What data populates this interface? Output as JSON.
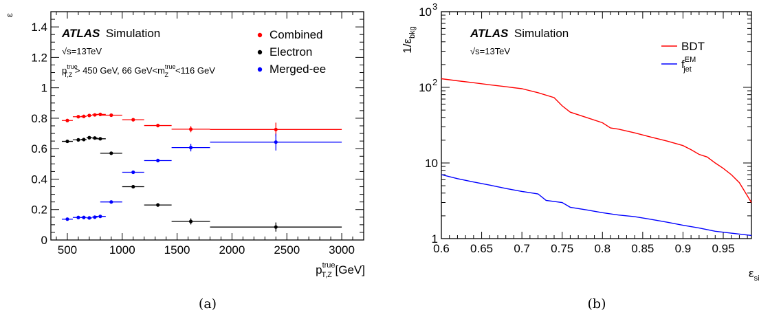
{
  "chart_data": [
    {
      "type": "scatter",
      "panel_label": "(a)",
      "header": {
        "experiment": "ATLAS",
        "label": "Simulation",
        "energy": "√s=13TeV"
      },
      "selection": {
        "p1": "p",
        "sup1": "true",
        "sub1": "T,Z",
        "p2": " > 450 GeV, 66 GeV<m",
        "sup2": "true",
        "sub2": "Z",
        "p3": "<116 GeV"
      },
      "xlabel": {
        "main": "p",
        "sup": "true",
        "sub": "T,Z",
        "unit": " [GeV]"
      },
      "ylabel": "ε",
      "xlim": [
        350,
        3200
      ],
      "ylim": [
        0,
        1.5
      ],
      "xticks": [
        500,
        1000,
        1500,
        2000,
        2500,
        3000
      ],
      "yticks": [
        0,
        0.2,
        0.4,
        0.6,
        0.8,
        1,
        1.2,
        1.4
      ],
      "legend_position": "top-right",
      "series": [
        {
          "name": "Combined",
          "color": "#ff0000",
          "points": [
            {
              "x": 500,
              "xerr": 50,
              "y": 0.785,
              "yerr": 0.006
            },
            {
              "x": 600,
              "xerr": 50,
              "y": 0.81,
              "yerr": 0.006
            },
            {
              "x": 650,
              "xerr": 25,
              "y": 0.812,
              "yerr": 0.006
            },
            {
              "x": 700,
              "xerr": 25,
              "y": 0.818,
              "yerr": 0.006
            },
            {
              "x": 750,
              "xerr": 25,
              "y": 0.822,
              "yerr": 0.006
            },
            {
              "x": 800,
              "xerr": 50,
              "y": 0.825,
              "yerr": 0.006
            },
            {
              "x": 900,
              "xerr": 100,
              "y": 0.82,
              "yerr": 0.006
            },
            {
              "x": 1100,
              "xerr": 100,
              "y": 0.79,
              "yerr": 0.008
            },
            {
              "x": 1325,
              "xerr": 125,
              "y": 0.752,
              "yerr": 0.012
            },
            {
              "x": 1625,
              "xerr": 175,
              "y": 0.728,
              "yerr": 0.02
            },
            {
              "x": 2400,
              "xerr": 600,
              "y": 0.726,
              "yerr": 0.045
            }
          ]
        },
        {
          "name": "Electron",
          "color": "#000000",
          "points": [
            {
              "x": 500,
              "xerr": 50,
              "y": 0.648,
              "yerr": 0.006
            },
            {
              "x": 600,
              "xerr": 50,
              "y": 0.658,
              "yerr": 0.006
            },
            {
              "x": 650,
              "xerr": 25,
              "y": 0.66,
              "yerr": 0.006
            },
            {
              "x": 700,
              "xerr": 25,
              "y": 0.672,
              "yerr": 0.006
            },
            {
              "x": 750,
              "xerr": 25,
              "y": 0.67,
              "yerr": 0.006
            },
            {
              "x": 800,
              "xerr": 50,
              "y": 0.665,
              "yerr": 0.006
            },
            {
              "x": 900,
              "xerr": 100,
              "y": 0.57,
              "yerr": 0.006
            },
            {
              "x": 1100,
              "xerr": 100,
              "y": 0.35,
              "yerr": 0.008
            },
            {
              "x": 1325,
              "xerr": 125,
              "y": 0.23,
              "yerr": 0.012
            },
            {
              "x": 1625,
              "xerr": 175,
              "y": 0.122,
              "yerr": 0.02
            },
            {
              "x": 2400,
              "xerr": 600,
              "y": 0.085,
              "yerr": 0.03
            }
          ]
        },
        {
          "name": "Merged-ee",
          "color": "#0000ff",
          "points": [
            {
              "x": 500,
              "xerr": 50,
              "y": 0.137,
              "yerr": 0.006
            },
            {
              "x": 600,
              "xerr": 50,
              "y": 0.148,
              "yerr": 0.006
            },
            {
              "x": 650,
              "xerr": 25,
              "y": 0.148,
              "yerr": 0.006
            },
            {
              "x": 700,
              "xerr": 25,
              "y": 0.145,
              "yerr": 0.006
            },
            {
              "x": 750,
              "xerr": 25,
              "y": 0.15,
              "yerr": 0.006
            },
            {
              "x": 800,
              "xerr": 50,
              "y": 0.155,
              "yerr": 0.006
            },
            {
              "x": 900,
              "xerr": 100,
              "y": 0.25,
              "yerr": 0.006
            },
            {
              "x": 1100,
              "xerr": 100,
              "y": 0.445,
              "yerr": 0.008
            },
            {
              "x": 1325,
              "xerr": 125,
              "y": 0.522,
              "yerr": 0.012
            },
            {
              "x": 1625,
              "xerr": 175,
              "y": 0.607,
              "yerr": 0.025
            },
            {
              "x": 2400,
              "xerr": 600,
              "y": 0.643,
              "yerr": 0.055
            }
          ]
        }
      ]
    },
    {
      "type": "line",
      "panel_label": "(b)",
      "header": {
        "experiment": "ATLAS",
        "label": "Simulation",
        "energy": "√s=13TeV"
      },
      "xlabel": {
        "main": "ε",
        "sub": "sig"
      },
      "ylabel": {
        "main": "1/ε",
        "sub": "bkg"
      },
      "xlim": [
        0.6,
        0.985
      ],
      "ylim": [
        1,
        1000
      ],
      "yscale": "log",
      "xticks": [
        0.6,
        0.65,
        0.7,
        0.75,
        0.8,
        0.85,
        0.9,
        0.95
      ],
      "yticks": [
        {
          "value": 1,
          "base": "1",
          "sup": ""
        },
        {
          "value": 10,
          "base": "10",
          "sup": ""
        },
        {
          "value": 100,
          "base": "10",
          "sup": "2"
        },
        {
          "value": 1000,
          "base": "10",
          "sup": "3"
        }
      ],
      "legend_position": "top-right",
      "series": [
        {
          "name": "BDT",
          "color": "#ff0000",
          "x": [
            0.6,
            0.62,
            0.64,
            0.66,
            0.68,
            0.7,
            0.72,
            0.74,
            0.75,
            0.76,
            0.78,
            0.8,
            0.81,
            0.82,
            0.84,
            0.86,
            0.88,
            0.9,
            0.91,
            0.92,
            0.93,
            0.94,
            0.95,
            0.96,
            0.97,
            0.985
          ],
          "y": [
            130,
            122,
            115,
            108,
            102,
            96,
            85,
            73,
            57,
            47,
            40,
            34,
            29,
            28,
            25,
            22,
            19.5,
            17,
            15,
            13,
            12,
            10,
            8.5,
            7,
            5.5,
            3
          ]
        },
        {
          "name": "f",
          "name_sup": "EM",
          "name_sub": "jet",
          "color": "#0000ff",
          "x": [
            0.6,
            0.62,
            0.64,
            0.66,
            0.68,
            0.7,
            0.72,
            0.73,
            0.75,
            0.76,
            0.78,
            0.8,
            0.82,
            0.84,
            0.86,
            0.88,
            0.9,
            0.92,
            0.94,
            0.96,
            0.985
          ],
          "y": [
            7,
            6.2,
            5.6,
            5.1,
            4.6,
            4.2,
            3.9,
            3.2,
            3.0,
            2.6,
            2.4,
            2.2,
            2.05,
            1.95,
            1.8,
            1.65,
            1.5,
            1.38,
            1.25,
            1.18,
            1.1
          ]
        }
      ]
    }
  ]
}
